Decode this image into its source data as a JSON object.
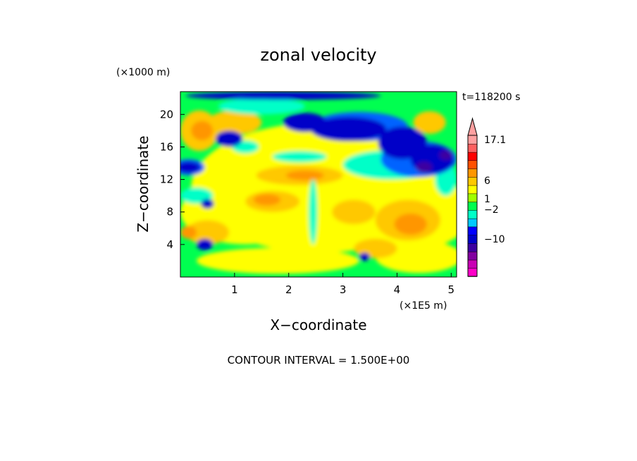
{
  "chart_data": {
    "type": "heatmap",
    "title": "zonal velocity",
    "xlabel": "X−coordinate",
    "ylabel": "Z−coordinate",
    "x_unit": "(×1E5 m)",
    "y_unit": "(×1000 m)",
    "time_label": "t=118200 s",
    "footer": "CONTOUR INTERVAL = 1.500E+00",
    "x_ticks": [
      "1",
      "2",
      "3",
      "4",
      "5"
    ],
    "y_ticks": [
      "4",
      "8",
      "12",
      "16",
      "20"
    ],
    "xlim": [
      0,
      5.1
    ],
    "ylim": [
      0,
      22.8
    ],
    "colorbar_labels": [
      {
        "label": "17.1",
        "value": 17.1
      },
      {
        "label": "6",
        "value": 6
      },
      {
        "label": "1",
        "value": 1
      },
      {
        "label": "−2",
        "value": -2
      },
      {
        "label": "−10",
        "value": -10
      }
    ],
    "colorbar_colors": [
      "#ff00c8",
      "#c800b4",
      "#8200a0",
      "#3c00a0",
      "#0000c8",
      "#0000ff",
      "#00c8ff",
      "#00ffc8",
      "#00ff50",
      "#a0ff00",
      "#ffff00",
      "#ffc800",
      "#ff9600",
      "#ff5000",
      "#ff0000",
      "#ff6060",
      "#ffa0a0"
    ],
    "field_colors": {
      "strong_negative": "#3c00a0",
      "negative": "#0000c8",
      "weak_negative": "#0064ff",
      "near_zero": "#00ffc8",
      "weak_positive": "#00ff50",
      "positive": "#ffff00",
      "moderate": "#ffc800",
      "strong_positive": "#ff9600",
      "peak": "#ff5000"
    }
  }
}
